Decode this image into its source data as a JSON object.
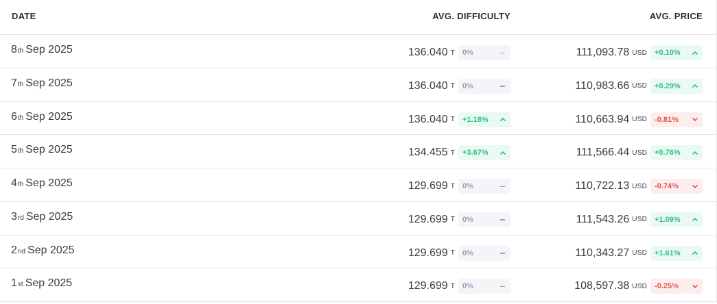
{
  "headers": {
    "date": "DATE",
    "difficulty": "AVG. DIFFICULTY",
    "price": "AVG. PRICE"
  },
  "units": {
    "difficulty": "T",
    "price": "USD"
  },
  "colors": {
    "up": "#2ebd85",
    "down": "#e5534b",
    "neutral": "#9aa0ac"
  },
  "rows": [
    {
      "day": "8",
      "ord": "th",
      "month_year": "Sep 2025",
      "difficulty": "136.040",
      "diff_change": "0%",
      "diff_dir": "neutral",
      "price": "111,093.78",
      "price_change": "+0.10%",
      "price_dir": "up"
    },
    {
      "day": "7",
      "ord": "th",
      "month_year": "Sep 2025",
      "difficulty": "136.040",
      "diff_change": "0%",
      "diff_dir": "neutral",
      "price": "110,983.66",
      "price_change": "+0.29%",
      "price_dir": "up"
    },
    {
      "day": "6",
      "ord": "th",
      "month_year": "Sep 2025",
      "difficulty": "136.040",
      "diff_change": "+1.18%",
      "diff_dir": "up",
      "price": "110,663.94",
      "price_change": "-0.81%",
      "price_dir": "down"
    },
    {
      "day": "5",
      "ord": "th",
      "month_year": "Sep 2025",
      "difficulty": "134.455",
      "diff_change": "+3.67%",
      "diff_dir": "up",
      "price": "111,566.44",
      "price_change": "+0.76%",
      "price_dir": "up"
    },
    {
      "day": "4",
      "ord": "th",
      "month_year": "Sep 2025",
      "difficulty": "129.699",
      "diff_change": "0%",
      "diff_dir": "neutral",
      "price": "110,722.13",
      "price_change": "-0.74%",
      "price_dir": "down"
    },
    {
      "day": "3",
      "ord": "rd",
      "month_year": "Sep 2025",
      "difficulty": "129.699",
      "diff_change": "0%",
      "diff_dir": "neutral",
      "price": "111,543.26",
      "price_change": "+1.09%",
      "price_dir": "up"
    },
    {
      "day": "2",
      "ord": "nd",
      "month_year": "Sep 2025",
      "difficulty": "129.699",
      "diff_change": "0%",
      "diff_dir": "neutral",
      "price": "110,343.27",
      "price_change": "+1.61%",
      "price_dir": "up"
    },
    {
      "day": "1",
      "ord": "st",
      "month_year": "Sep 2025",
      "difficulty": "129.699",
      "diff_change": "0%",
      "diff_dir": "neutral",
      "price": "108,597.38",
      "price_change": "-0.25%",
      "price_dir": "down"
    }
  ]
}
